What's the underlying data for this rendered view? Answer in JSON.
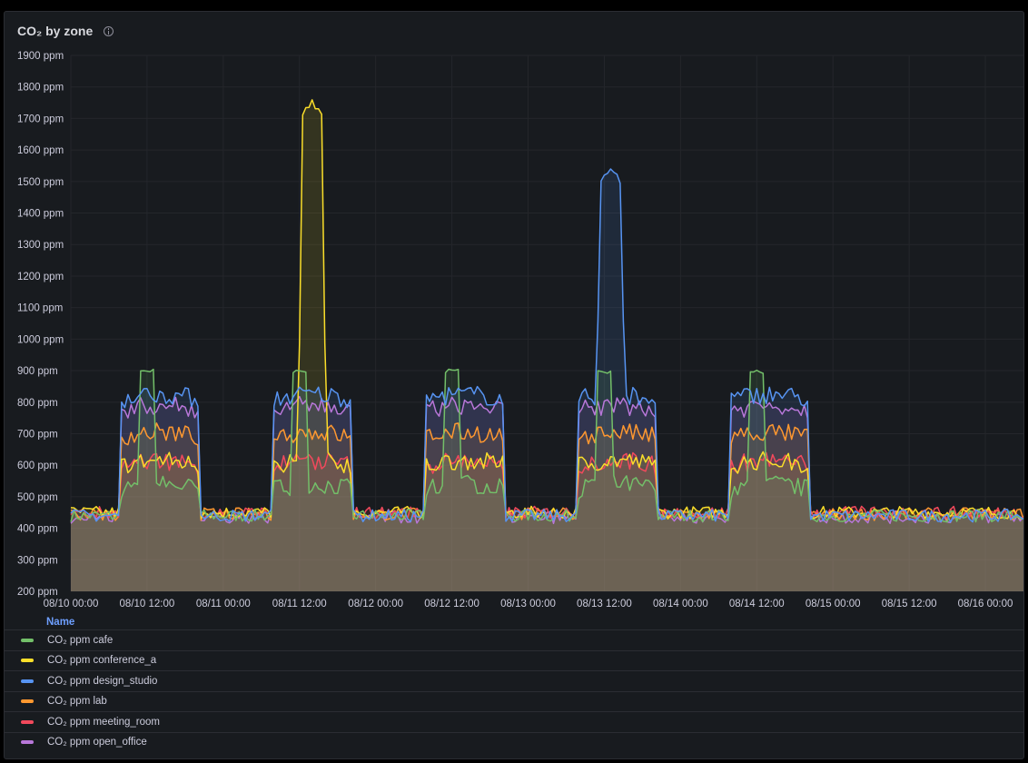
{
  "panel": {
    "title": "CO₂ by zone"
  },
  "legend": {
    "header": "Name"
  },
  "chart_data": {
    "type": "area",
    "title": "CO₂ by zone",
    "y_unit": "ppm",
    "ylim": [
      200,
      1900
    ],
    "y_ticks": [
      "200 ppm",
      "300 ppm",
      "400 ppm",
      "500 ppm",
      "600 ppm",
      "700 ppm",
      "800 ppm",
      "900 ppm",
      "1000 ppm",
      "1100 ppm",
      "1200 ppm",
      "1300 ppm",
      "1400 ppm",
      "1500 ppm",
      "1600 ppm",
      "1700 ppm",
      "1800 ppm",
      "1900 ppm"
    ],
    "x_ticks": [
      "08/10 00:00",
      "08/10 12:00",
      "08/11 00:00",
      "08/11 12:00",
      "08/12 00:00",
      "08/12 12:00",
      "08/13 00:00",
      "08/13 12:00",
      "08/14 00:00",
      "08/14 12:00",
      "08/15 00:00",
      "08/15 12:00",
      "08/16 00:00"
    ],
    "x_range": [
      "08/10 00:00",
      "08/16 06:00"
    ],
    "grid": true,
    "legend_position": "bottom",
    "series": [
      {
        "name": "CO₂ ppm cafe",
        "color": "#73bf69",
        "baseline": 440,
        "weekday_level": 525,
        "lunch_peak": 905,
        "peaks": [
          {
            "x": "08/10 12:00",
            "y": 905
          },
          {
            "x": "08/11 12:00",
            "y": 910
          },
          {
            "x": "08/12 12:00",
            "y": 905
          },
          {
            "x": "08/13 12:00",
            "y": 900
          },
          {
            "x": "08/14 12:00",
            "y": 900
          }
        ]
      },
      {
        "name": "CO₂ ppm conference_a",
        "color": "#fade2a",
        "baseline": 450,
        "weekday_level": 600,
        "spike": {
          "x": "08/11 14:00",
          "y": 1760
        }
      },
      {
        "name": "CO₂ ppm design_studio",
        "color": "#5794f2",
        "baseline": 440,
        "weekday_level": 810,
        "spike": {
          "x": "08/13 13:00",
          "y": 1550
        }
      },
      {
        "name": "CO₂ ppm lab",
        "color": "#ff9830",
        "baseline": 445,
        "weekday_level": 690
      },
      {
        "name": "CO₂ ppm meeting_room",
        "color": "#f2495c",
        "baseline": 450,
        "weekday_level": 600
      },
      {
        "name": "CO₂ ppm open_office",
        "color": "#b877d9",
        "baseline": 435,
        "weekday_level": 775
      }
    ],
    "occupancy_window": {
      "start": "08:00",
      "end": "20:00"
    },
    "days": [
      "08/10",
      "08/11",
      "08/12",
      "08/13",
      "08/14"
    ]
  }
}
